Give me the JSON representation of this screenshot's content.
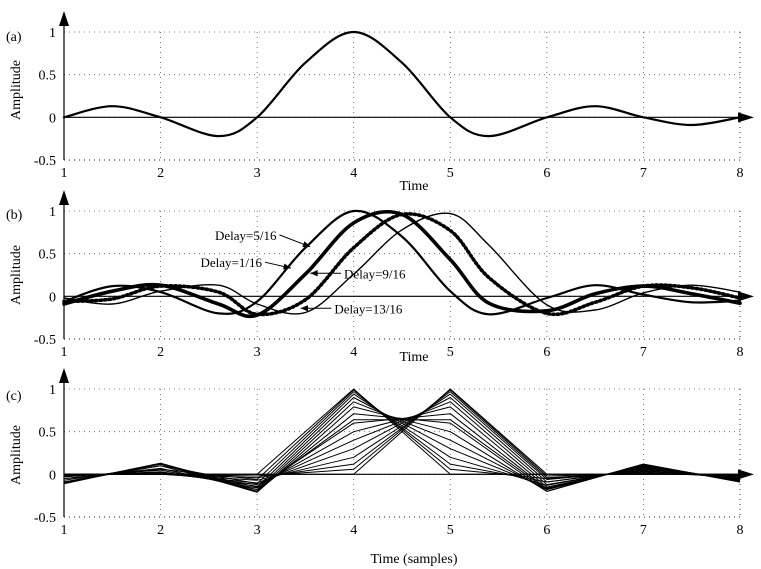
{
  "chart_data": [
    {
      "panel_label": "(a)",
      "type": "line",
      "xlabel": "Time",
      "ylabel": "Amplitude",
      "xlim": [
        1,
        8
      ],
      "ylim": [
        -0.5,
        1
      ],
      "xticks": [
        "1",
        "2",
        "3",
        "4",
        "5",
        "6",
        "7",
        "8"
      ],
      "yticks": [
        "-0.5",
        "0",
        "0.5",
        "1"
      ],
      "grid": true,
      "series": [
        {
          "x": [
            1,
            1.5,
            2,
            2.6,
            3,
            3.5,
            4,
            4.5,
            5,
            5.4,
            6,
            6.5,
            7,
            7.5,
            8
          ],
          "y": [
            0,
            0.13,
            0,
            -0.22,
            0,
            0.64,
            1,
            0.64,
            0,
            -0.22,
            0,
            0.13,
            0,
            -0.09,
            0
          ]
        }
      ]
    },
    {
      "panel_label": "(b)",
      "type": "line",
      "xlabel": "Time",
      "ylabel": "Amplitude",
      "xlim": [
        1,
        8
      ],
      "ylim": [
        -0.5,
        1
      ],
      "xticks": [
        "1",
        "2",
        "3",
        "4",
        "5",
        "6",
        "7",
        "8"
      ],
      "yticks": [
        "-0.5",
        "0",
        "0.5",
        "1"
      ],
      "grid": true,
      "annotations": [
        {
          "text": "Delay=5/16",
          "x": 3.2,
          "y": 0.72
        },
        {
          "text": "Delay=1/16",
          "x": 3.05,
          "y": 0.4
        },
        {
          "text": "Delay=9/16",
          "x": 3.9,
          "y": 0.27
        },
        {
          "text": "Delay=13/16",
          "x": 3.8,
          "y": -0.14
        }
      ],
      "series": [
        {
          "delay": 0.0625,
          "x": [
            1,
            1.5,
            2,
            2.6,
            3,
            3.5,
            4,
            4.5,
            5,
            5.4,
            6,
            6.5,
            7,
            7.5,
            8
          ],
          "y": [
            -0.06,
            0.12,
            0.05,
            -0.2,
            -0.06,
            0.57,
            1,
            0.7,
            0.06,
            -0.21,
            -0.02,
            0.13,
            0.02,
            -0.07,
            -0.05
          ]
        },
        {
          "delay": 0.3125,
          "x": [
            1,
            1.5,
            2,
            2.6,
            3,
            3.5,
            4,
            4.5,
            5,
            5.4,
            6,
            6.5,
            7,
            7.5,
            8
          ],
          "y": [
            -0.09,
            0.06,
            0.13,
            -0.09,
            -0.22,
            0.26,
            0.86,
            0.96,
            0.43,
            -0.08,
            -0.17,
            0.03,
            0.12,
            0.03,
            -0.08
          ]
        },
        {
          "delay": 0.5625,
          "x": [
            1,
            1.5,
            2,
            2.6,
            3,
            3.5,
            4,
            4.5,
            5,
            5.4,
            6,
            6.5,
            7,
            7.5,
            8
          ],
          "y": [
            -0.06,
            -0.03,
            0.12,
            0.05,
            -0.21,
            -0.04,
            0.57,
            0.96,
            0.77,
            0.22,
            -0.2,
            -0.07,
            0.12,
            0.1,
            -0.02
          ]
        },
        {
          "delay": 0.8125,
          "x": [
            1,
            1.5,
            2,
            2.6,
            3,
            3.5,
            4,
            4.5,
            5,
            5.4,
            6,
            6.5,
            7,
            7.5,
            8
          ],
          "y": [
            -0.02,
            -0.09,
            0.06,
            0.13,
            -0.09,
            -0.19,
            0.26,
            0.78,
            0.97,
            0.6,
            -0.1,
            -0.16,
            0.04,
            0.13,
            0.05
          ]
        }
      ]
    },
    {
      "panel_label": "(c)",
      "type": "line",
      "xlabel": "Time (samples)",
      "ylabel": "Amplitude",
      "xlim": [
        1,
        8
      ],
      "ylim": [
        -0.5,
        1
      ],
      "xticks": [
        "1",
        "2",
        "3",
        "4",
        "5",
        "6",
        "7",
        "8"
      ],
      "yticks": [
        "-0.5",
        "0",
        "0.5",
        "1"
      ],
      "grid": true,
      "sample_x": [
        1,
        2,
        3,
        4,
        5,
        6,
        7,
        8
      ],
      "series": [
        {
          "delay": 0,
          "y": [
            0,
            0,
            0,
            1,
            0,
            0,
            0,
            0
          ]
        },
        {
          "delay": 0.0625,
          "y": [
            -0.05,
            0.06,
            -0.06,
            0.99,
            0.06,
            -0.05,
            0.03,
            -0.02
          ]
        },
        {
          "delay": 0.125,
          "y": [
            -0.09,
            0.1,
            -0.11,
            0.97,
            0.12,
            -0.09,
            0.06,
            -0.04
          ]
        },
        {
          "delay": 0.1875,
          "y": [
            -0.1,
            0.12,
            -0.15,
            0.94,
            0.2,
            -0.13,
            0.08,
            -0.06
          ]
        },
        {
          "delay": 0.25,
          "y": [
            -0.11,
            0.13,
            -0.18,
            0.9,
            0.3,
            -0.16,
            0.1,
            -0.07
          ]
        },
        {
          "delay": 0.3125,
          "y": [
            -0.1,
            0.13,
            -0.2,
            0.85,
            0.4,
            -0.18,
            0.11,
            -0.08
          ]
        },
        {
          "delay": 0.375,
          "y": [
            -0.09,
            0.12,
            -0.21,
            0.79,
            0.5,
            -0.2,
            0.12,
            -0.09
          ]
        },
        {
          "delay": 0.4375,
          "y": [
            -0.07,
            0.1,
            -0.2,
            0.71,
            0.6,
            -0.2,
            0.12,
            -0.09
          ]
        },
        {
          "delay": 0.5,
          "y": [
            -0.05,
            0.07,
            -0.18,
            0.64,
            0.64,
            -0.18,
            0.11,
            -0.08
          ]
        },
        {
          "delay": 0.5625,
          "y": [
            -0.03,
            0.05,
            -0.16,
            0.6,
            0.71,
            -0.17,
            0.1,
            -0.07
          ]
        },
        {
          "delay": 0.625,
          "y": [
            -0.02,
            0.03,
            -0.14,
            0.5,
            0.79,
            -0.15,
            0.09,
            -0.07
          ]
        },
        {
          "delay": 0.6875,
          "y": [
            -0.01,
            0.02,
            -0.12,
            0.4,
            0.85,
            -0.12,
            0.07,
            -0.06
          ]
        },
        {
          "delay": 0.75,
          "y": [
            -0.01,
            0.01,
            -0.1,
            0.3,
            0.9,
            -0.09,
            0.05,
            -0.05
          ]
        },
        {
          "delay": 0.8125,
          "y": [
            0,
            0,
            -0.07,
            0.2,
            0.94,
            -0.06,
            0.04,
            -0.04
          ]
        },
        {
          "delay": 0.875,
          "y": [
            0,
            0,
            -0.04,
            0.12,
            0.97,
            -0.04,
            0.02,
            -0.03
          ]
        },
        {
          "delay": 0.9375,
          "y": [
            0,
            0,
            -0.02,
            0.06,
            0.99,
            -0.02,
            0.01,
            -0.01
          ]
        },
        {
          "delay": 1,
          "y": [
            0,
            0,
            0,
            0,
            1,
            0,
            0,
            0
          ]
        }
      ]
    }
  ]
}
